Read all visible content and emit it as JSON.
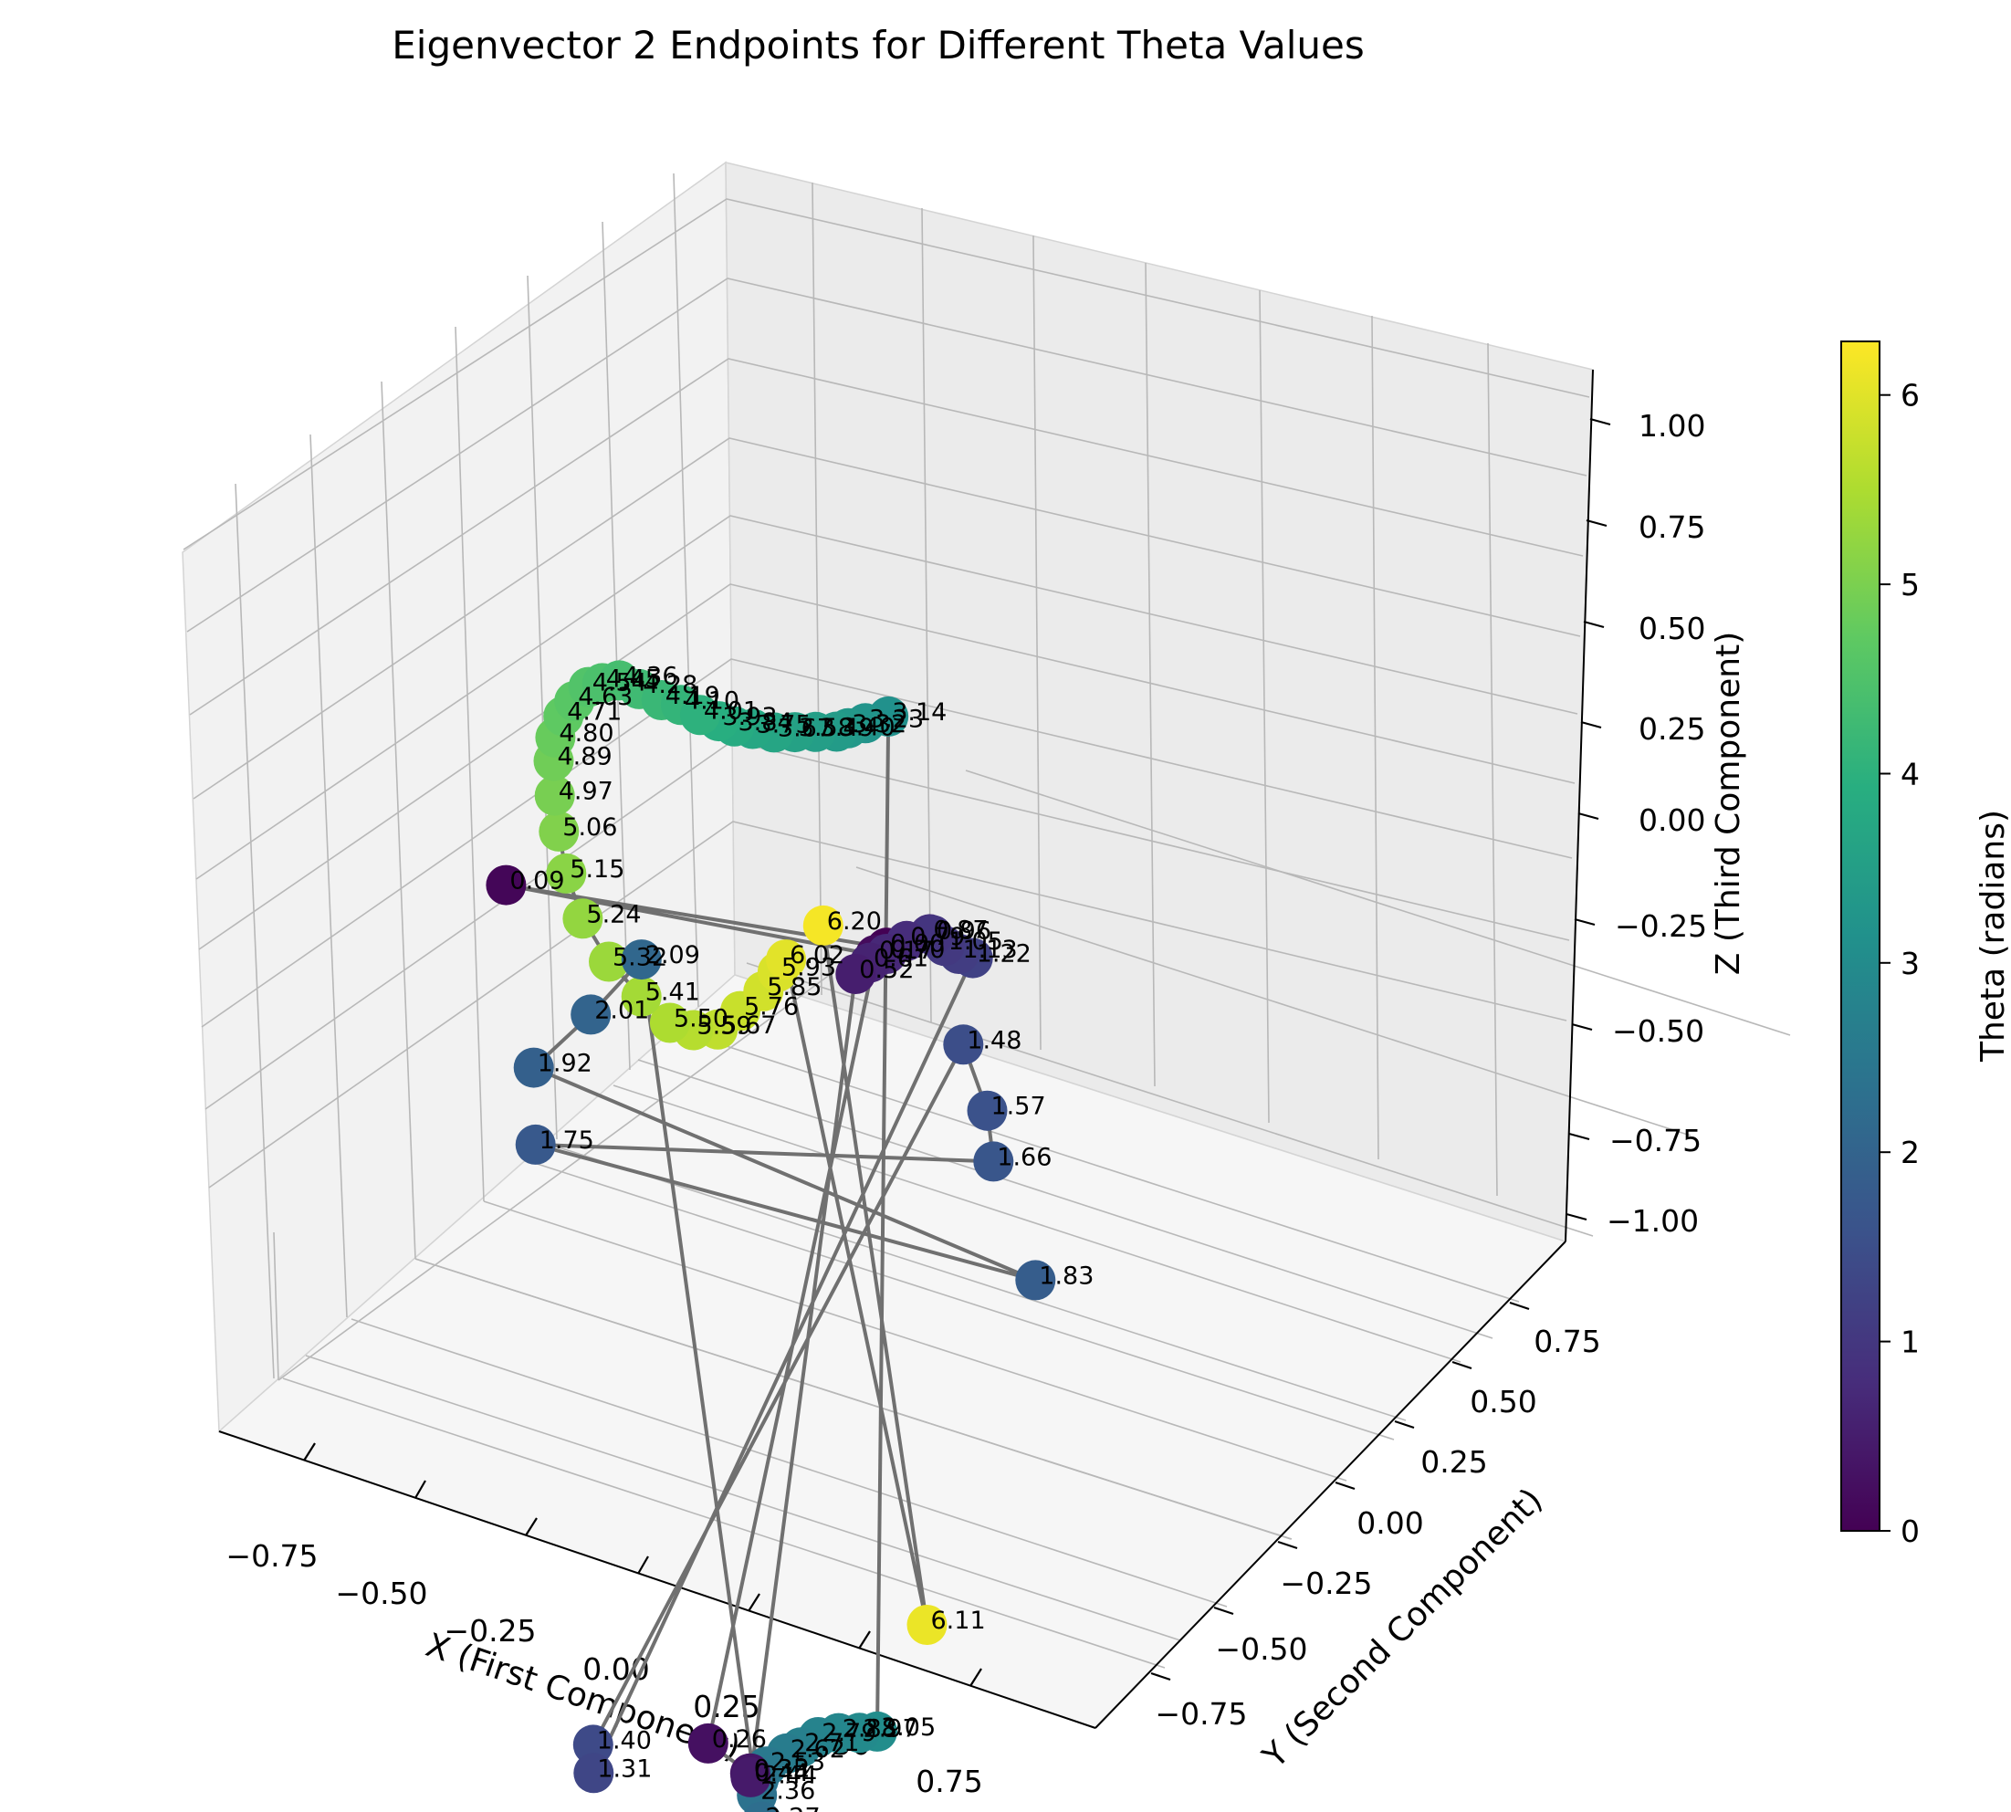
{
  "chart_data": {
    "type": "scatter",
    "title": "Eigenvector 2 Endpoints for Different Theta Values",
    "xlabel": "X (First Component)",
    "ylabel": "Y (Second Component)",
    "zlabel": "Z (Third Component)",
    "xlim": [
      -0.9,
      0.9
    ],
    "ylim": [
      -0.9,
      0.9
    ],
    "zlim": [
      -1.1,
      1.1
    ],
    "xticks": [
      "−0.75",
      "−0.50",
      "−0.25",
      "0.00",
      "0.25",
      "0.50",
      "0.75"
    ],
    "yticks": [
      "−0.75",
      "−0.50",
      "−0.25",
      "0.00",
      "0.25",
      "0.50",
      "0.75"
    ],
    "zticks": [
      "−1.00",
      "−0.75",
      "−0.50",
      "−0.25",
      "0.00",
      "0.25",
      "0.50",
      "0.75",
      "1.00"
    ],
    "grid": true,
    "colormap": "viridis",
    "colorbar": {
      "label": "Theta (radians)",
      "range": [
        0,
        6.283
      ],
      "ticks": [
        "0",
        "1",
        "2",
        "3",
        "4",
        "5",
        "6"
      ]
    },
    "connector_color": "#707070",
    "series": [
      {
        "theta": [
          0.0,
          0.09,
          0.17,
          0.26,
          0.35,
          0.44,
          0.52,
          0.61,
          0.7,
          0.79,
          0.87,
          0.96,
          1.05,
          1.13,
          1.22,
          1.31,
          1.4,
          1.48,
          1.57,
          1.66,
          1.75,
          1.83,
          1.92,
          2.01,
          2.09,
          2.18,
          2.27,
          2.36,
          2.44,
          2.53,
          2.62,
          2.71,
          2.79,
          2.88,
          2.97,
          3.05,
          3.14,
          3.23,
          3.32,
          3.4,
          3.49,
          3.58,
          3.67,
          3.75,
          3.84,
          3.93,
          4.01,
          4.1,
          4.19,
          4.28,
          4.36,
          4.45,
          4.54,
          4.63,
          4.71,
          4.8,
          4.89,
          4.97,
          5.06,
          5.15,
          5.24,
          5.32,
          5.41,
          5.5,
          5.59,
          5.67,
          5.76,
          5.85,
          5.93,
          6.02,
          6.11,
          6.2
        ],
        "labels": [
          "0.00",
          "0.09",
          "0.17",
          "0.26",
          "0.35",
          "0.44",
          "0.52",
          "0.61",
          "0.70",
          "0.79",
          "0.87",
          "0.96",
          "1.05",
          "1.13",
          "1.22",
          "1.31",
          "1.40",
          "1.48",
          "1.57",
          "1.66",
          "1.75",
          "1.83",
          "1.92",
          "2.01",
          "2.09",
          "2.18",
          "2.27",
          "2.36",
          "2.44",
          "2.53",
          "2.62",
          "2.71",
          "2.79",
          "2.88",
          "2.97",
          "3.05",
          "3.14",
          "3.23",
          "3.32",
          "3.40",
          "3.49",
          "3.58",
          "3.67",
          "3.75",
          "3.84",
          "3.93",
          "4.01",
          "4.10",
          "4.19",
          "4.28",
          "4.36",
          "4.45",
          "4.54",
          "4.63",
          "4.71",
          "4.80",
          "4.89",
          "4.97",
          "5.06",
          "5.15",
          "5.24",
          "5.32",
          "5.41",
          "5.50",
          "5.59",
          "5.67",
          "5.76",
          "5.85",
          "5.93",
          "6.02",
          "6.11",
          "6.20"
        ],
        "x": [
          0.09,
          -0.92,
          0.08,
          -0.08,
          0.08,
          0.09,
          0.1,
          0.12,
          0.14,
          0.17,
          0.21,
          0.22,
          0.25,
          0.28,
          0.3,
          -0.23,
          -0.25,
          0.35,
          0.48,
          0.52,
          -0.7,
          0.5,
          -0.72,
          -0.6,
          -0.5,
          0.12,
          0.08,
          0.03,
          0.01,
          0.01,
          0.04,
          0.06,
          0.09,
          0.13,
          0.18,
          0.22,
          0.2,
          0.16,
          0.13,
          0.11,
          0.06,
          0.01,
          -0.04,
          -0.1,
          -0.15,
          -0.2,
          -0.26,
          -0.33,
          -0.4,
          -0.48,
          -0.56,
          -0.63,
          -0.69,
          -0.75,
          -0.8,
          -0.84,
          -0.86,
          -0.87,
          -0.87,
          -0.86,
          -0.82,
          -0.75,
          -0.66,
          -0.6,
          -0.55,
          -0.48,
          -0.41,
          -0.33,
          -0.27,
          -0.22,
          0.15,
          -0.08
        ],
        "y": [
          0.25,
          0.0,
          0.22,
          -0.16,
          -0.19,
          -0.2,
          0.12,
          0.15,
          0.19,
          0.23,
          0.27,
          0.27,
          0.28,
          0.3,
          0.33,
          -0.42,
          -0.4,
          0.24,
          0.18,
          0.16,
          -0.13,
          0.36,
          -0.12,
          -0.05,
          0.02,
          -0.18,
          -0.14,
          -0.1,
          -0.07,
          -0.04,
          0.0,
          0.03,
          0.06,
          0.09,
          0.11,
          0.13,
          0.1,
          0.06,
          0.03,
          0.01,
          -0.01,
          -0.03,
          -0.05,
          -0.06,
          -0.07,
          -0.07,
          -0.07,
          -0.06,
          -0.05,
          -0.04,
          -0.02,
          0.0,
          0.02,
          0.04,
          0.06,
          0.08,
          0.1,
          0.12,
          0.14,
          0.16,
          0.18,
          0.2,
          0.22,
          0.26,
          0.29,
          0.3,
          0.3,
          0.29,
          0.27,
          0.24,
          0.4,
          0.21
        ],
        "z": [
          0.45,
          0.5,
          0.45,
          -0.91,
          -0.92,
          -0.92,
          0.47,
          0.48,
          0.48,
          0.49,
          0.49,
          0.49,
          0.47,
          0.45,
          0.43,
          -0.86,
          -0.82,
          0.32,
          0.25,
          0.17,
          0.11,
          -0.17,
          0.25,
          0.34,
          0.43,
          -1.06,
          -1.04,
          -1.02,
          -1.01,
          -1.0,
          -0.99,
          -0.99,
          -0.98,
          -0.98,
          -0.98,
          -0.98,
          1.0,
          1.0,
          1.0,
          1.0,
          1.0,
          1.0,
          1.0,
          1.0,
          1.0,
          1.0,
          1.0,
          1.0,
          0.99,
          0.99,
          0.98,
          0.95,
          0.92,
          0.87,
          0.82,
          0.76,
          0.7,
          0.62,
          0.54,
          0.45,
          0.36,
          0.28,
          0.22,
          0.16,
          0.14,
          0.15,
          0.2,
          0.26,
          0.32,
          0.37,
          -0.93,
          0.48
        ]
      }
    ]
  }
}
